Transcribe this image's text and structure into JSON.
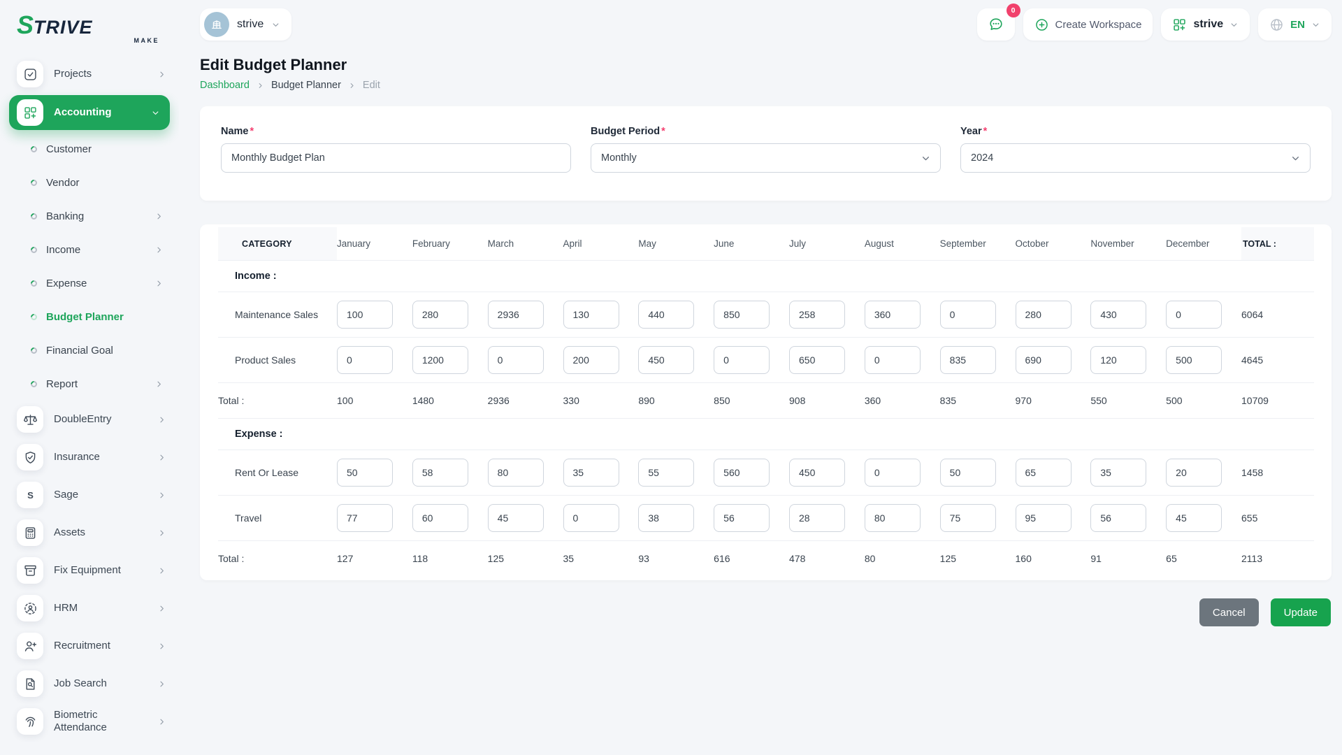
{
  "brand": {
    "logo_accent_letter": "S",
    "logo_rest": "TRIVE",
    "logo_sub": "MAKE"
  },
  "topbar": {
    "workspace": {
      "name": "strive"
    },
    "messages_badge": "0",
    "create_workspace_label": "Create Workspace",
    "workspace_switcher_label": "strive",
    "language_label": "EN"
  },
  "sidebar": {
    "items": [
      {
        "label": "Projects",
        "icon": "checkbox-icon",
        "chevron": "right"
      },
      {
        "label": "Accounting",
        "icon": "grid-plus-icon",
        "chevron": "down",
        "active": true
      },
      {
        "label": "Customer",
        "sub": true
      },
      {
        "label": "Vendor",
        "sub": true
      },
      {
        "label": "Banking",
        "sub": true,
        "chevron": "right"
      },
      {
        "label": "Income",
        "sub": true,
        "chevron": "right"
      },
      {
        "label": "Expense",
        "sub": true,
        "chevron": "right"
      },
      {
        "label": "Budget Planner",
        "sub": true,
        "active": true
      },
      {
        "label": "Financial Goal",
        "sub": true
      },
      {
        "label": "Report",
        "sub": true,
        "chevron": "right"
      },
      {
        "label": "DoubleEntry",
        "icon": "scales-icon",
        "chevron": "right"
      },
      {
        "label": "Insurance",
        "icon": "shield-check-icon",
        "chevron": "right"
      },
      {
        "label": "Sage",
        "icon": "letter-s-icon",
        "chevron": "right"
      },
      {
        "label": "Assets",
        "icon": "calculator-icon",
        "chevron": "right"
      },
      {
        "label": "Fix Equipment",
        "icon": "archive-icon",
        "chevron": "right"
      },
      {
        "label": "HRM",
        "icon": "person-dashed-icon",
        "chevron": "right"
      },
      {
        "label": "Recruitment",
        "icon": "person-plus-icon",
        "chevron": "right"
      },
      {
        "label": "Job Search",
        "icon": "doc-search-icon",
        "chevron": "right"
      },
      {
        "label": "Biometric Attendance",
        "icon": "fingerprint-icon",
        "chevron": "right"
      }
    ]
  },
  "page": {
    "title": "Edit Budget Planner",
    "breadcrumb": [
      "Dashboard",
      "Budget Planner",
      "Edit"
    ]
  },
  "form": {
    "name": {
      "label": "Name",
      "required_mark": "*",
      "value": "Monthly Budget Plan"
    },
    "period": {
      "label": "Budget Period",
      "required_mark": "*",
      "value": "Monthly"
    },
    "year": {
      "label": "Year",
      "required_mark": "*",
      "value": "2024"
    }
  },
  "budget_table": {
    "category_header": "CATEGORY",
    "months": [
      "January",
      "February",
      "March",
      "April",
      "May",
      "June",
      "July",
      "August",
      "September",
      "October",
      "November",
      "December"
    ],
    "total_header": "TOTAL :",
    "sections": [
      {
        "title": "Income :",
        "rows": [
          {
            "label": "Maintenance Sales",
            "values": [
              100,
              280,
              2936,
              130,
              440,
              850,
              258,
              360,
              0,
              280,
              430,
              0
            ],
            "total": 6064
          },
          {
            "label": "Product Sales",
            "values": [
              0,
              1200,
              0,
              200,
              450,
              0,
              650,
              0,
              835,
              690,
              120,
              500
            ],
            "total": 4645
          }
        ],
        "total_row": {
          "label": "Total :",
          "values": [
            100,
            1480,
            2936,
            330,
            890,
            850,
            908,
            360,
            835,
            970,
            550,
            500
          ],
          "total": 10709
        }
      },
      {
        "title": "Expense :",
        "rows": [
          {
            "label": "Rent Or Lease",
            "values": [
              50,
              58,
              80,
              35,
              55,
              560,
              450,
              0,
              50,
              65,
              35,
              20
            ],
            "total": 1458
          },
          {
            "label": "Travel",
            "values": [
              77,
              60,
              45,
              0,
              38,
              56,
              28,
              80,
              75,
              95,
              56,
              45
            ],
            "total": 655
          }
        ],
        "total_row": {
          "label": "Total :",
          "values": [
            127,
            118,
            125,
            35,
            93,
            616,
            478,
            80,
            125,
            160,
            91,
            65
          ],
          "total": 2113
        }
      }
    ]
  },
  "actions": {
    "cancel": "Cancel",
    "update": "Update"
  },
  "colors": {
    "accent_green": "#1ea55b",
    "badge_pink": "#f1416c",
    "cancel_gray": "#6c757d",
    "update_green": "#17a34e"
  }
}
